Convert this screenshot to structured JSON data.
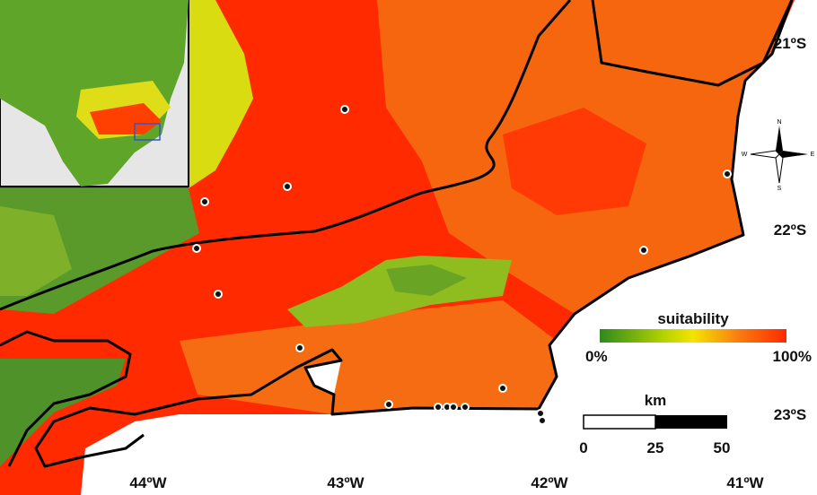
{
  "map": {
    "latitude_labels": [
      "21ºS",
      "22ºS",
      "23ºS"
    ],
    "longitude_labels": [
      "44ºW",
      "43ºW",
      "42ºW",
      "41ºW"
    ],
    "legend": {
      "title": "suitability",
      "min_label": "0%",
      "max_label": "100%"
    },
    "scale_bar": {
      "unit": "km",
      "labels": [
        "0",
        "25",
        "50"
      ]
    },
    "compass": {
      "n": "N",
      "e": "E",
      "s": "S",
      "w": "W"
    }
  }
}
